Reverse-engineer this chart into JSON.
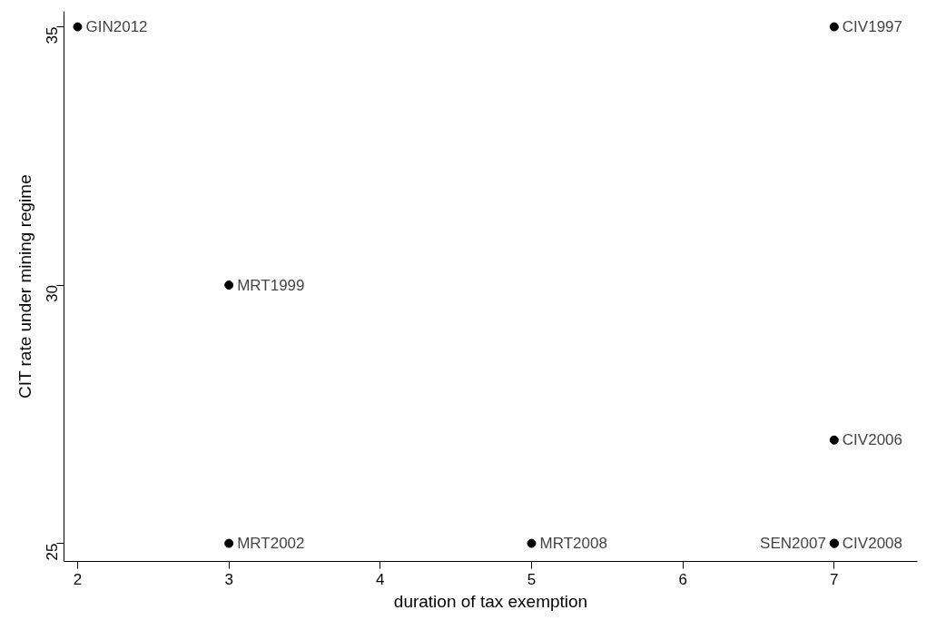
{
  "chart_data": {
    "type": "scatter",
    "xlabel": "duration of tax exemption",
    "ylabel": "CIT rate under mining regime",
    "x": [
      2,
      3,
      3,
      5,
      7,
      7,
      7,
      7
    ],
    "series": [
      {
        "color": "#000000",
        "values": [
          35,
          30,
          25,
          25,
          35,
          27,
          25,
          25
        ]
      }
    ],
    "marker": "circle",
    "grid": false,
    "xlim": [
      1.91,
      7.55
    ],
    "ylim": [
      24.65,
      35.3
    ],
    "xticks": [
      2,
      3,
      4,
      5,
      6,
      7
    ],
    "yticks": [
      25,
      30,
      35
    ],
    "annotations": [
      {
        "text": "GIN2012",
        "x": 2,
        "y": 35
      },
      {
        "text": "MRT1999",
        "x": 3,
        "y": 30
      },
      {
        "text": "MRT2002",
        "x": 3,
        "y": 25
      },
      {
        "text": "MRT2008",
        "x": 5,
        "y": 25
      },
      {
        "text": "CIV1997",
        "x": 7,
        "y": 35
      },
      {
        "text": "CIV2006",
        "x": 7,
        "y": 27
      },
      {
        "text": "SEN2007",
        "x": 7,
        "y": 25
      },
      {
        "text": "CIV2008",
        "x": 7,
        "y": 25
      }
    ]
  }
}
